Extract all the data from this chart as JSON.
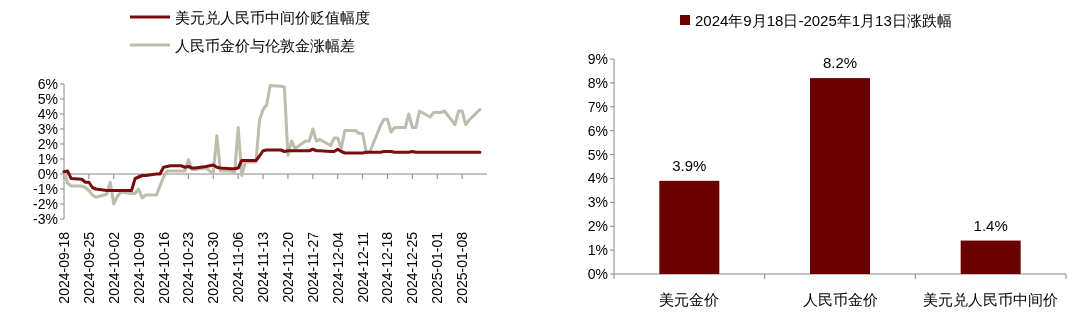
{
  "chart_data": [
    {
      "type": "line",
      "legend": "top",
      "marker": "none",
      "line_style": "solid",
      "x": [
        "2024-09-18",
        "2024-09-19",
        "2024-09-20",
        "2024-09-23",
        "2024-09-24",
        "2024-09-25",
        "2024-09-26",
        "2024-09-27",
        "2024-09-30",
        "2024-10-01",
        "2024-10-02",
        "2024-10-03",
        "2024-10-04",
        "2024-10-07",
        "2024-10-08",
        "2024-10-09",
        "2024-10-10",
        "2024-10-11",
        "2024-10-14",
        "2024-10-15",
        "2024-10-16",
        "2024-10-17",
        "2024-10-18",
        "2024-10-21",
        "2024-10-22",
        "2024-10-23",
        "2024-10-24",
        "2024-10-25",
        "2024-10-28",
        "2024-10-29",
        "2024-10-30",
        "2024-10-31",
        "2024-11-01",
        "2024-11-04",
        "2024-11-05",
        "2024-11-06",
        "2024-11-07",
        "2024-11-08",
        "2024-11-11",
        "2024-11-12",
        "2024-11-13",
        "2024-11-14",
        "2024-11-15",
        "2024-11-18",
        "2024-11-19",
        "2024-11-20",
        "2024-11-21",
        "2024-11-22",
        "2024-11-25",
        "2024-11-26",
        "2024-11-27",
        "2024-11-28",
        "2024-11-29",
        "2024-12-02",
        "2024-12-03",
        "2024-12-04",
        "2024-12-05",
        "2024-12-06",
        "2024-12-09",
        "2024-12-10",
        "2024-12-11",
        "2024-12-12",
        "2024-12-13",
        "2024-12-16",
        "2024-12-17",
        "2024-12-18",
        "2024-12-19",
        "2024-12-20",
        "2024-12-23",
        "2024-12-24",
        "2024-12-25",
        "2024-12-26",
        "2024-12-27",
        "2024-12-30",
        "2024-12-31",
        "2025-01-02",
        "2025-01-03",
        "2025-01-06",
        "2025-01-07",
        "2025-01-08",
        "2025-01-09",
        "2025-01-10",
        "2025-01-13"
      ],
      "series": [
        {
          "name": "美元兑人民币中间价贬值幅度",
          "color": "#7b0c0c",
          "values": [
            0.15,
            0.2,
            -0.3,
            -0.35,
            -0.55,
            -0.55,
            -0.9,
            -1.0,
            -1.1,
            -1.1,
            -1.1,
            -1.1,
            -1.1,
            -1.1,
            -0.3,
            -0.2,
            -0.1,
            -0.1,
            0,
            0,
            0.45,
            0.5,
            0.55,
            0.55,
            0.45,
            0.5,
            0.4,
            0.4,
            0.5,
            0.55,
            0.6,
            0.45,
            0.4,
            0.35,
            0.35,
            0.4,
            0.9,
            0.9,
            0.9,
            1.2,
            1.55,
            1.6,
            1.6,
            1.6,
            1.5,
            1.55,
            1.55,
            1.55,
            1.55,
            1.55,
            1.65,
            1.55,
            1.55,
            1.5,
            1.5,
            1.65,
            1.5,
            1.4,
            1.4,
            1.4,
            1.4,
            1.45,
            1.45,
            1.45,
            1.5,
            1.5,
            1.5,
            1.45,
            1.45,
            1.45,
            1.5,
            1.45,
            1.45,
            1.45,
            1.45,
            1.45,
            1.45,
            1.45,
            1.45,
            1.45,
            1.45,
            1.45,
            1.45
          ]
        },
        {
          "name": "人民币金价与伦敦金涨幅差",
          "color": "#bdbcad",
          "values": [
            0.2,
            -0.6,
            -0.8,
            -0.8,
            -0.9,
            -1.1,
            -1.4,
            -1.55,
            -1.35,
            -0.55,
            -2.0,
            -1.5,
            -1.2,
            -1.3,
            -1.3,
            -1.0,
            -1.6,
            -1.4,
            -1.4,
            -0.8,
            -0.2,
            0.2,
            0.2,
            0.2,
            0.2,
            0.95,
            0.3,
            0.3,
            0.4,
            0.2,
            0.05,
            2.55,
            0.2,
            0.2,
            0.1,
            3.1,
            -0.1,
            0.8,
            0.8,
            3.6,
            4.3,
            4.6,
            5.9,
            5.85,
            5.8,
            1.25,
            2.2,
            1.7,
            2.2,
            2.2,
            3.0,
            2.2,
            2.3,
            1.9,
            2.4,
            2.4,
            1.7,
            2.9,
            2.9,
            2.7,
            2.7,
            1.5,
            1.45,
            3.2,
            3.65,
            3.65,
            2.8,
            3.1,
            3.1,
            4.0,
            3.1,
            3.1,
            4.2,
            3.8,
            4.1,
            4.1,
            4.2,
            3.3,
            4.2,
            4.2,
            3.3,
            3.6,
            4.3
          ]
        }
      ],
      "xlim": [
        "2024-09-18",
        "2025-01-15"
      ],
      "xticks": [
        "2024-09-18",
        "2024-09-25",
        "2024-10-02",
        "2024-10-09",
        "2024-10-16",
        "2024-10-23",
        "2024-10-30",
        "2024-11-06",
        "2024-11-13",
        "2024-11-20",
        "2024-11-27",
        "2024-12-04",
        "2024-12-11",
        "2024-12-18",
        "2024-12-25",
        "2025-01-01",
        "2025-01-08"
      ],
      "ylim": [
        -3,
        6
      ],
      "yticks": [
        {
          "value": -3,
          "label": "-3%"
        },
        {
          "value": -2,
          "label": "-2%"
        },
        {
          "value": -1,
          "label": "-1%"
        },
        {
          "value": 0,
          "label": "0%"
        },
        {
          "value": 1,
          "label": "1%"
        },
        {
          "value": 2,
          "label": "2%"
        },
        {
          "value": 3,
          "label": "3%"
        },
        {
          "value": 4,
          "label": "4%"
        },
        {
          "value": 5,
          "label": "5%"
        },
        {
          "value": 6,
          "label": "6%"
        }
      ]
    },
    {
      "type": "bar",
      "legend": "top",
      "categories": [
        "美元金价",
        "人民币金价",
        "美元兑人民币中间价"
      ],
      "series": [
        {
          "name": "2024年9月18日-2025年1月13日涨跌幅",
          "color": "#6b0000",
          "values": [
            3.9,
            8.2,
            1.4
          ],
          "value_labels": [
            "3.9%",
            "8.2%",
            "1.4%"
          ]
        }
      ],
      "ylim": [
        0,
        9
      ],
      "yticks": [
        {
          "value": 0,
          "label": "0%"
        },
        {
          "value": 1,
          "label": "1%"
        },
        {
          "value": 2,
          "label": "2%"
        },
        {
          "value": 3,
          "label": "3%"
        },
        {
          "value": 4,
          "label": "4%"
        },
        {
          "value": 5,
          "label": "5%"
        },
        {
          "value": 6,
          "label": "6%"
        },
        {
          "value": 7,
          "label": "7%"
        },
        {
          "value": 8,
          "label": "8%"
        },
        {
          "value": 9,
          "label": "9%"
        }
      ]
    }
  ]
}
